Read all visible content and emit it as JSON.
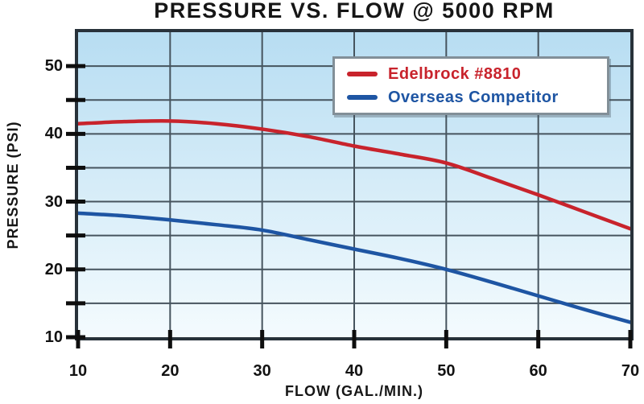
{
  "colors": {
    "accent_red": "#c8232c",
    "accent_blue": "#1e55a3",
    "plot_bg_top": "#b7ddf2",
    "plot_bg_bottom": "#f4fbfe",
    "grid": "#46545e",
    "border": "#28323a",
    "tick": "#0e0e0e",
    "text": "#121212",
    "legend_border": "#828f98",
    "legend_bg": "#ffffff"
  },
  "chart_data": {
    "type": "line",
    "title": "PRESSURE VS. FLOW @ 5000 RPM",
    "xlabel": "FLOW (GAL./MIN.)",
    "ylabel": "PRESSURE (PSI)",
    "xlim": [
      10,
      70
    ],
    "ylim": [
      10,
      55
    ],
    "x_ticks": [
      10,
      20,
      30,
      40,
      50,
      60,
      70
    ],
    "y_ticks_labeled": [
      10,
      20,
      30,
      40,
      50
    ],
    "x_grid_step": 10,
    "y_grid_step": 5,
    "y_tick_step": 5,
    "grid": "on",
    "legend_position": "top-right",
    "x": [
      10,
      15,
      20,
      25,
      30,
      35,
      40,
      45,
      50,
      55,
      60,
      65,
      70
    ],
    "series": [
      {
        "name": "Edelbrock #8810",
        "color": "#c8232c",
        "values": [
          41.5,
          41.8,
          41.9,
          41.5,
          40.7,
          39.6,
          38.2,
          37.0,
          35.7,
          33.4,
          31.0,
          28.5,
          26.0
        ]
      },
      {
        "name": "Overseas Competitor",
        "color": "#1e55a3",
        "values": [
          28.3,
          27.9,
          27.3,
          26.6,
          25.8,
          24.4,
          23.0,
          21.6,
          20.0,
          18.1,
          16.1,
          14.1,
          12.2
        ]
      }
    ]
  }
}
